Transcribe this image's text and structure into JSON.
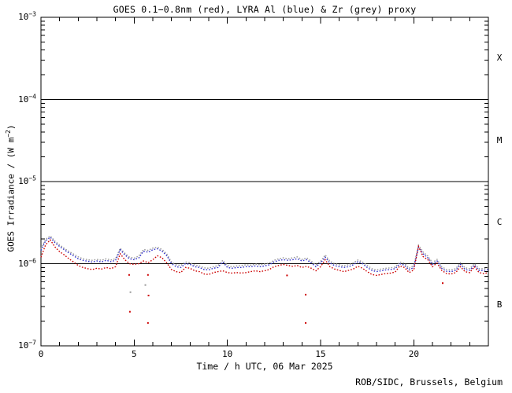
{
  "colors": {
    "background": "#ffffff",
    "axis": "#000000"
  },
  "chart_data": {
    "type": "line",
    "title": "GOES 0.1−0.8nm (red), LYRA Al (blue) & Zr (grey) proxy",
    "xlabel": "Time / h UTC, 06 Mar 2025",
    "ylabel_parts": {
      "pre": "GOES Irradiance / (W m",
      "sup": "−2",
      "post": ")"
    },
    "footer": "ROB/SIDC, Brussels, Belgium",
    "legend_position": "none",
    "grid": false,
    "x_axis": {
      "min": 0,
      "max": 24,
      "major_ticks": [
        0,
        5,
        10,
        15,
        20
      ],
      "minor_step": 1
    },
    "y_axis": {
      "scale": "log",
      "exp_min": -7,
      "exp_max": -3,
      "unit": "W m-2",
      "tick_labels": [
        {
          "base": "10",
          "sup": "−3",
          "exp": -3
        },
        {
          "base": "10",
          "sup": "−4",
          "exp": -4
        },
        {
          "base": "10",
          "sup": "−5",
          "exp": -5
        },
        {
          "base": "10",
          "sup": "−6",
          "exp": -6
        },
        {
          "base": "10",
          "sup": "−7",
          "exp": -7
        }
      ]
    },
    "boundary_lines_wm2": [
      0.0001,
      1e-05,
      1e-06
    ],
    "flare_classes": [
      {
        "label": "X",
        "exp_center": -3.5
      },
      {
        "label": "M",
        "exp_center": -4.5
      },
      {
        "label": "C",
        "exp_center": -5.5
      },
      {
        "label": "B",
        "exp_center": -6.5
      }
    ],
    "series_unit_scale": 1e-06,
    "x_start": 0,
    "x_step": 0.25,
    "series": [
      {
        "name": "GOES 0.1-0.8nm",
        "color": "#cc0000",
        "values": [
          1.2,
          1.7,
          1.95,
          1.6,
          1.4,
          1.28,
          1.15,
          1.05,
          0.95,
          0.9,
          0.87,
          0.85,
          0.88,
          0.86,
          0.9,
          0.87,
          0.92,
          1.32,
          1.12,
          1.0,
          0.98,
          1.0,
          1.08,
          1.03,
          1.12,
          1.25,
          1.18,
          1.02,
          0.85,
          0.8,
          0.78,
          0.9,
          0.88,
          0.82,
          0.8,
          0.75,
          0.74,
          0.78,
          0.8,
          0.82,
          0.78,
          0.77,
          0.78,
          0.77,
          0.78,
          0.8,
          0.82,
          0.8,
          0.82,
          0.85,
          0.92,
          0.95,
          0.98,
          0.95,
          0.93,
          0.95,
          0.9,
          0.93,
          0.88,
          0.82,
          0.92,
          1.12,
          0.92,
          0.86,
          0.83,
          0.8,
          0.83,
          0.86,
          0.93,
          0.88,
          0.8,
          0.74,
          0.72,
          0.74,
          0.76,
          0.77,
          0.79,
          0.94,
          0.9,
          0.78,
          0.84,
          1.62,
          1.22,
          1.12,
          0.92,
          1.02,
          0.83,
          0.76,
          0.75,
          0.78,
          0.92,
          0.8,
          0.78,
          0.92,
          0.78,
          0.76,
          0.78
        ]
      },
      {
        "name": "LYRA Al proxy",
        "color": "#3333cc",
        "values": [
          1.45,
          1.9,
          2.1,
          1.8,
          1.62,
          1.48,
          1.35,
          1.25,
          1.15,
          1.1,
          1.07,
          1.05,
          1.08,
          1.05,
          1.1,
          1.06,
          1.1,
          1.48,
          1.28,
          1.15,
          1.12,
          1.18,
          1.42,
          1.38,
          1.48,
          1.52,
          1.42,
          1.25,
          1.0,
          0.92,
          0.9,
          1.0,
          0.98,
          0.92,
          0.9,
          0.85,
          0.84,
          0.88,
          0.9,
          1.05,
          0.9,
          0.88,
          0.9,
          0.9,
          0.92,
          0.92,
          0.94,
          0.92,
          0.94,
          0.97,
          1.05,
          1.1,
          1.12,
          1.1,
          1.12,
          1.15,
          1.08,
          1.12,
          1.02,
          0.92,
          1.02,
          1.2,
          1.02,
          0.95,
          0.92,
          0.9,
          0.92,
          0.97,
          1.06,
          1.0,
          0.9,
          0.83,
          0.8,
          0.82,
          0.84,
          0.85,
          0.87,
          1.0,
          0.96,
          0.84,
          0.9,
          1.58,
          1.32,
          1.18,
          0.98,
          1.08,
          0.88,
          0.81,
          0.8,
          0.83,
          0.98,
          0.85,
          0.83,
          0.96,
          0.83,
          0.83,
          0.85
        ]
      },
      {
        "name": "LYRA Zr proxy",
        "color": "#999999",
        "values": [
          1.52,
          1.98,
          2.18,
          1.88,
          1.69,
          1.54,
          1.41,
          1.31,
          1.21,
          1.15,
          1.12,
          1.1,
          1.13,
          1.1,
          1.15,
          1.11,
          1.15,
          1.54,
          1.34,
          1.2,
          1.17,
          1.24,
          1.49,
          1.45,
          1.55,
          1.59,
          1.49,
          1.31,
          1.05,
          0.97,
          0.95,
          1.05,
          1.03,
          0.96,
          0.94,
          0.89,
          0.88,
          0.92,
          0.95,
          1.1,
          0.95,
          0.92,
          0.94,
          0.95,
          0.97,
          0.96,
          0.99,
          0.97,
          0.99,
          1.02,
          1.1,
          1.15,
          1.18,
          1.15,
          1.18,
          1.21,
          1.13,
          1.18,
          1.07,
          0.97,
          1.07,
          1.28,
          1.07,
          1.0,
          0.97,
          0.94,
          0.97,
          1.02,
          1.11,
          1.05,
          0.95,
          0.87,
          0.84,
          0.86,
          0.88,
          0.89,
          0.91,
          1.05,
          1.01,
          0.88,
          0.95,
          1.68,
          1.39,
          1.24,
          1.03,
          1.13,
          0.92,
          0.85,
          0.84,
          0.87,
          1.03,
          0.89,
          0.87,
          1.0,
          0.87,
          0.87,
          0.89
        ]
      }
    ],
    "outlier_points": [
      {
        "series": 0,
        "t": 4.73,
        "v": 0.73
      },
      {
        "series": 0,
        "t": 4.77,
        "v": 0.26
      },
      {
        "series": 0,
        "t": 5.74,
        "v": 0.73
      },
      {
        "series": 0,
        "t": 5.77,
        "v": 0.41
      },
      {
        "series": 0,
        "t": 5.74,
        "v": 0.19
      },
      {
        "series": 0,
        "t": 13.2,
        "v": 0.72
      },
      {
        "series": 0,
        "t": 14.2,
        "v": 0.42
      },
      {
        "series": 0,
        "t": 14.2,
        "v": 0.19
      },
      {
        "series": 0,
        "t": 21.55,
        "v": 0.58
      },
      {
        "series": 2,
        "t": 5.6,
        "v": 0.55
      },
      {
        "series": 2,
        "t": 4.8,
        "v": 0.45
      }
    ]
  }
}
